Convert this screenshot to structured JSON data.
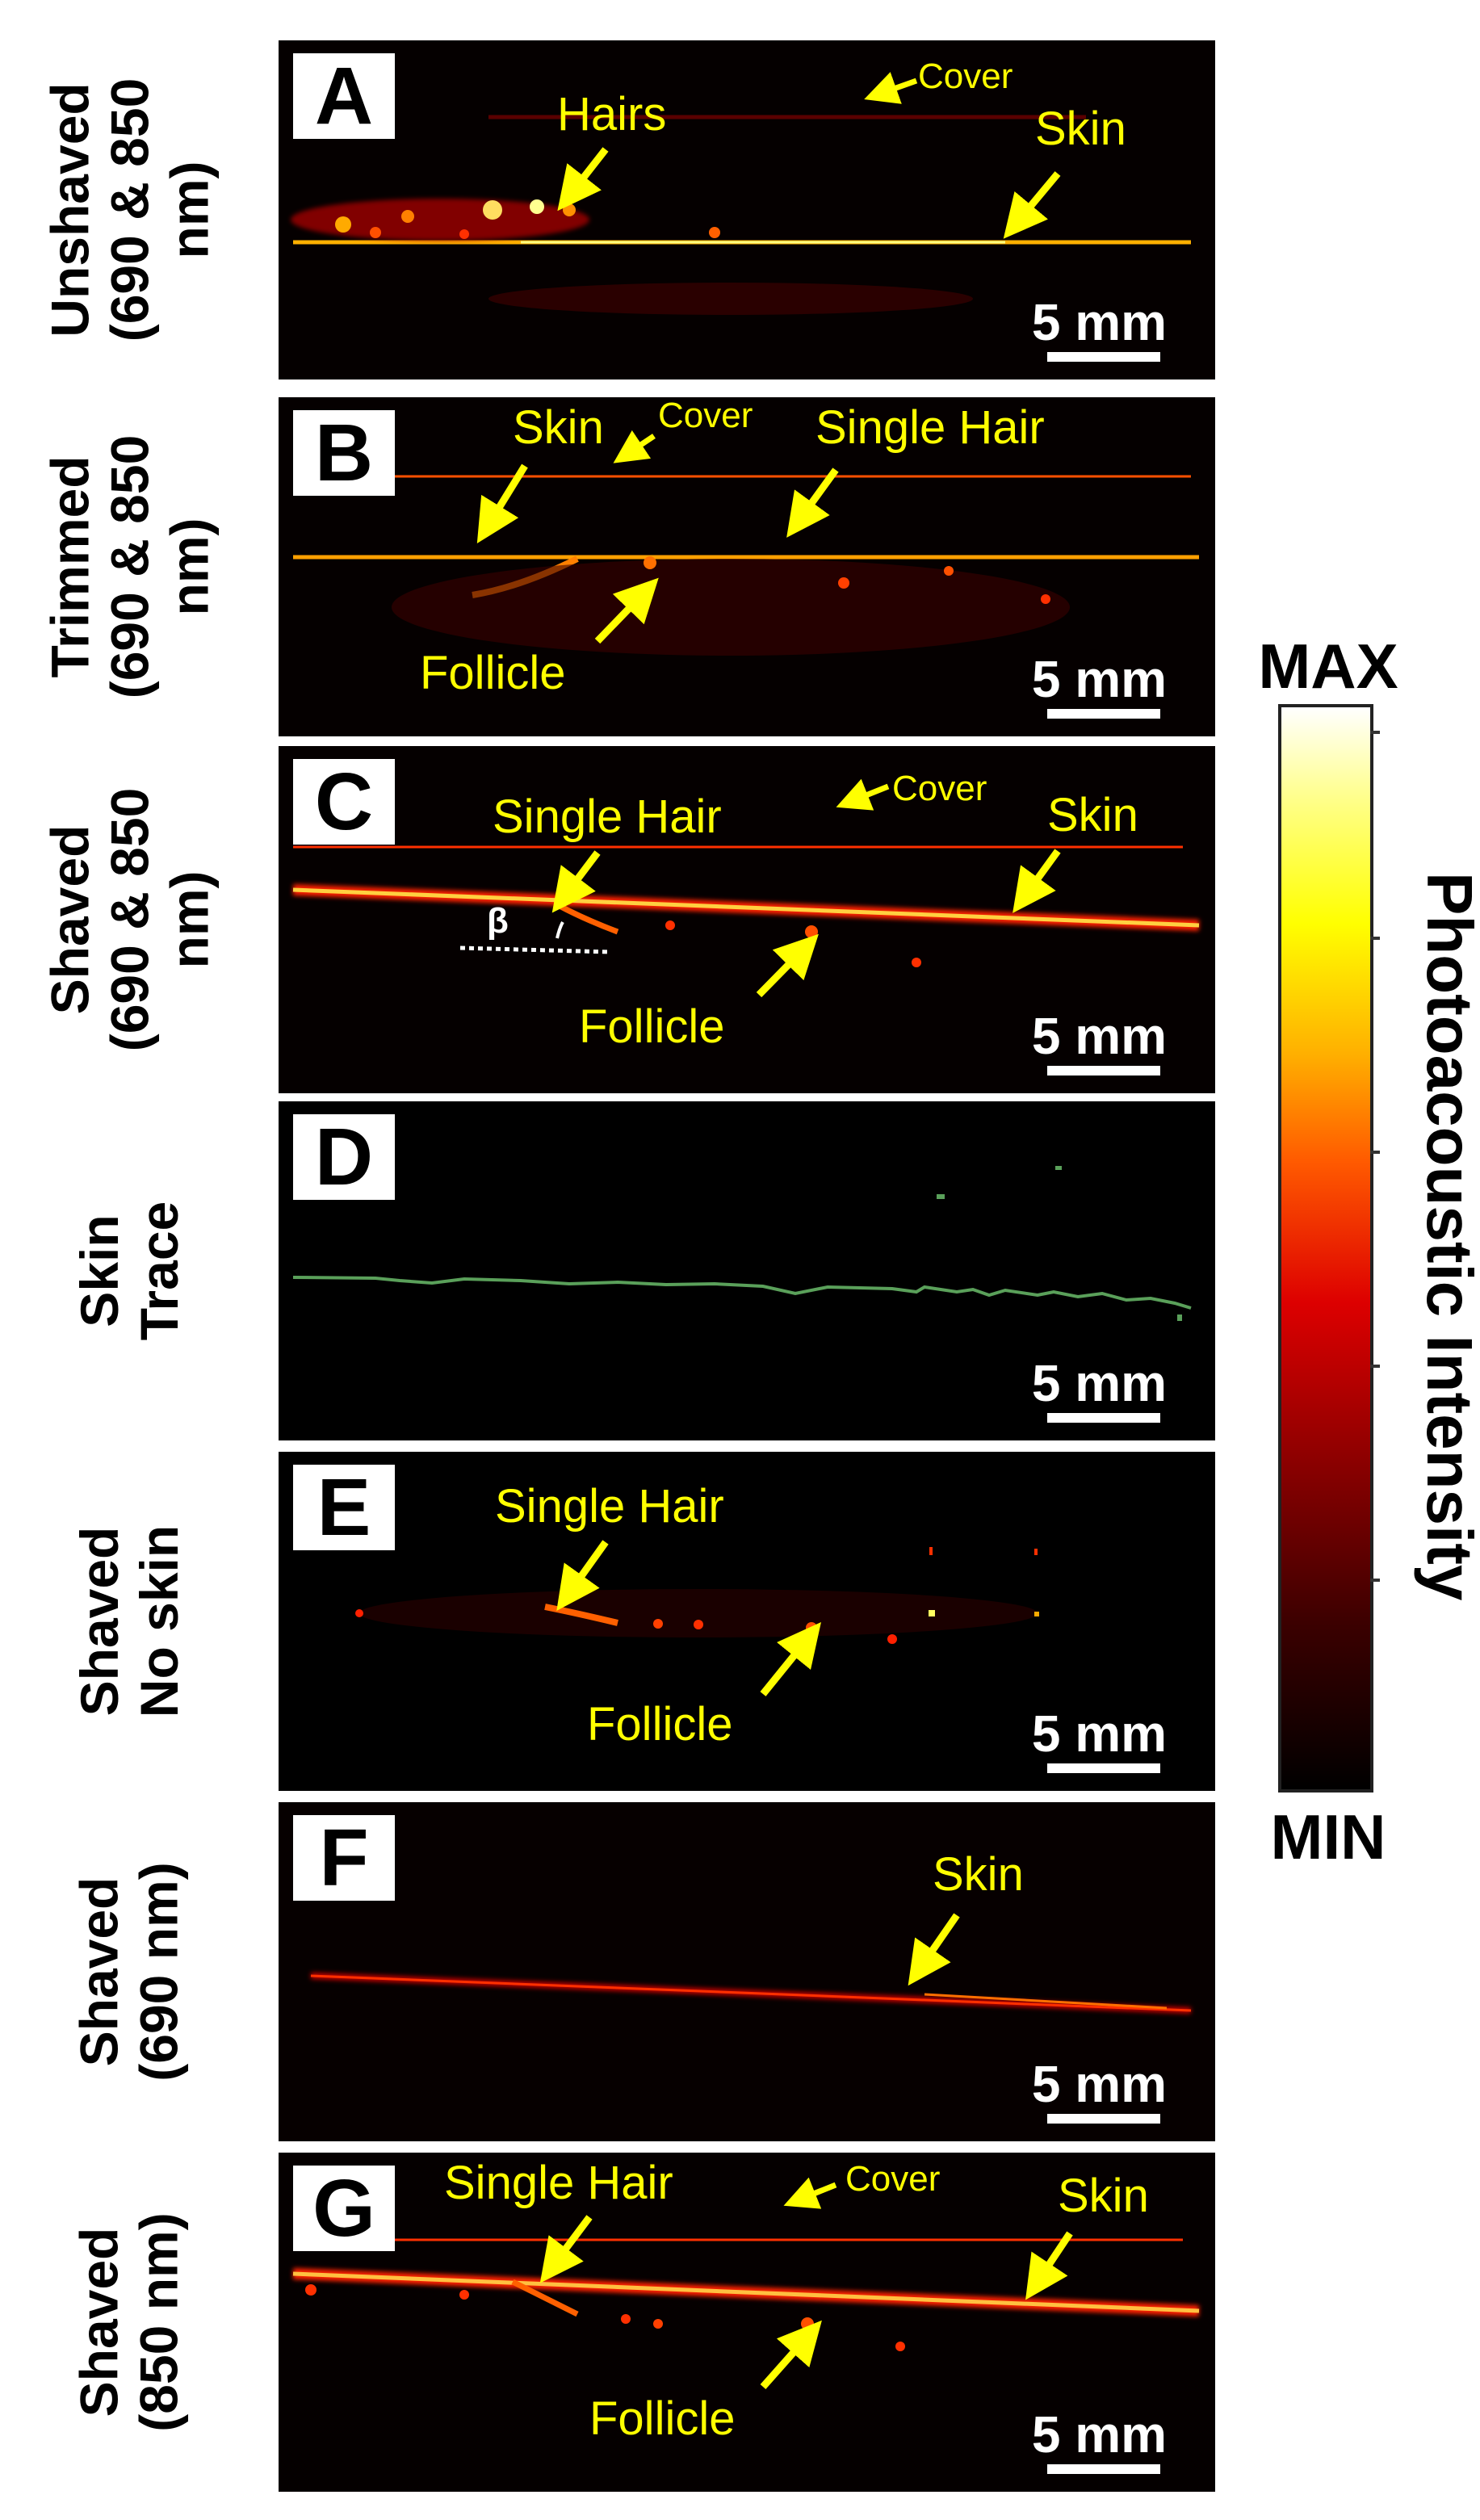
{
  "panels": [
    {
      "letter": "A",
      "row_label": [
        "Unshaved",
        "(690 & 850",
        "nm)"
      ],
      "annotations": {
        "hairs": "Hairs",
        "cover": "Cover",
        "skin": "Skin"
      },
      "scale": "5 mm"
    },
    {
      "letter": "B",
      "row_label": [
        "Trimmed",
        "(690 & 850",
        "nm)"
      ],
      "annotations": {
        "skin": "Skin",
        "cover": "Cover",
        "single_hair": "Single Hair",
        "follicle": "Follicle"
      },
      "scale": "5 mm"
    },
    {
      "letter": "C",
      "row_label": [
        "Shaved",
        "(690 & 850",
        "nm)"
      ],
      "annotations": {
        "single_hair": "Single Hair",
        "cover": "Cover",
        "skin": "Skin",
        "follicle": "Follicle",
        "beta": "β"
      },
      "scale": "5 mm"
    },
    {
      "letter": "D",
      "row_label": [
        "Skin",
        "Trace"
      ],
      "annotations": {},
      "scale": "5 mm"
    },
    {
      "letter": "E",
      "row_label": [
        "Shaved",
        "No skin"
      ],
      "annotations": {
        "single_hair": "Single Hair",
        "follicle": "Follicle"
      },
      "scale": "5 mm"
    },
    {
      "letter": "F",
      "row_label": [
        "Shaved",
        "(690 nm)"
      ],
      "annotations": {
        "skin": "Skin"
      },
      "scale": "5 mm"
    },
    {
      "letter": "G",
      "row_label": [
        "Shaved",
        "(850 nm)"
      ],
      "annotations": {
        "single_hair": "Single Hair",
        "cover": "Cover",
        "skin": "Skin",
        "follicle": "Follicle"
      },
      "scale": "5 mm"
    }
  ],
  "colorbar": {
    "max_label": "MAX",
    "min_label": "MIN",
    "title": "Photoacoustic Intensity",
    "colormap": [
      "#000000",
      "#8a0000",
      "#dd0000",
      "#ff5a00",
      "#ffff00",
      "#ffffff"
    ]
  },
  "colors": {
    "annotation": "#ffff00",
    "panel_background": "#050000",
    "skin_trace": "#5aa05a"
  }
}
